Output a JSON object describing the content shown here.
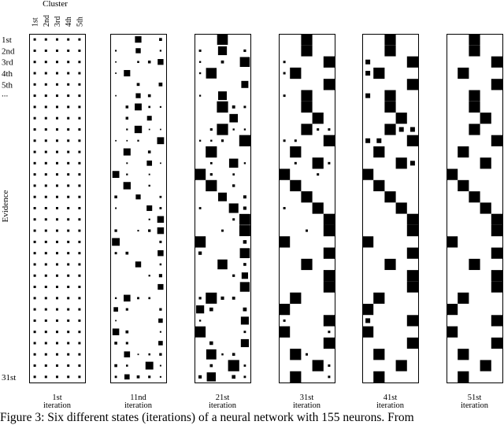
{
  "cluster_header": "Cluster",
  "column_labels": [
    "1st",
    "2nd",
    "3rd",
    "4th",
    "5th"
  ],
  "row_labels_top": [
    "1st",
    "2nd",
    "3rd",
    "4th",
    "5th",
    "..."
  ],
  "row_label_bottom": "31st",
  "axis_label": "Evidence",
  "rows_count": 31,
  "panels": [
    {
      "ordinal": "1st",
      "word": "iteration"
    },
    {
      "ordinal": "11nd",
      "word": "iteration"
    },
    {
      "ordinal": "21st",
      "word": "iteration"
    },
    {
      "ordinal": "31st",
      "word": "iteration"
    },
    {
      "ordinal": "41st",
      "word": "iteration"
    },
    {
      "ordinal": "51st",
      "word": "iteration"
    }
  ],
  "caption": "Figure 3: Six different states (iterations) of a neural network with 155 neurons. From"
}
